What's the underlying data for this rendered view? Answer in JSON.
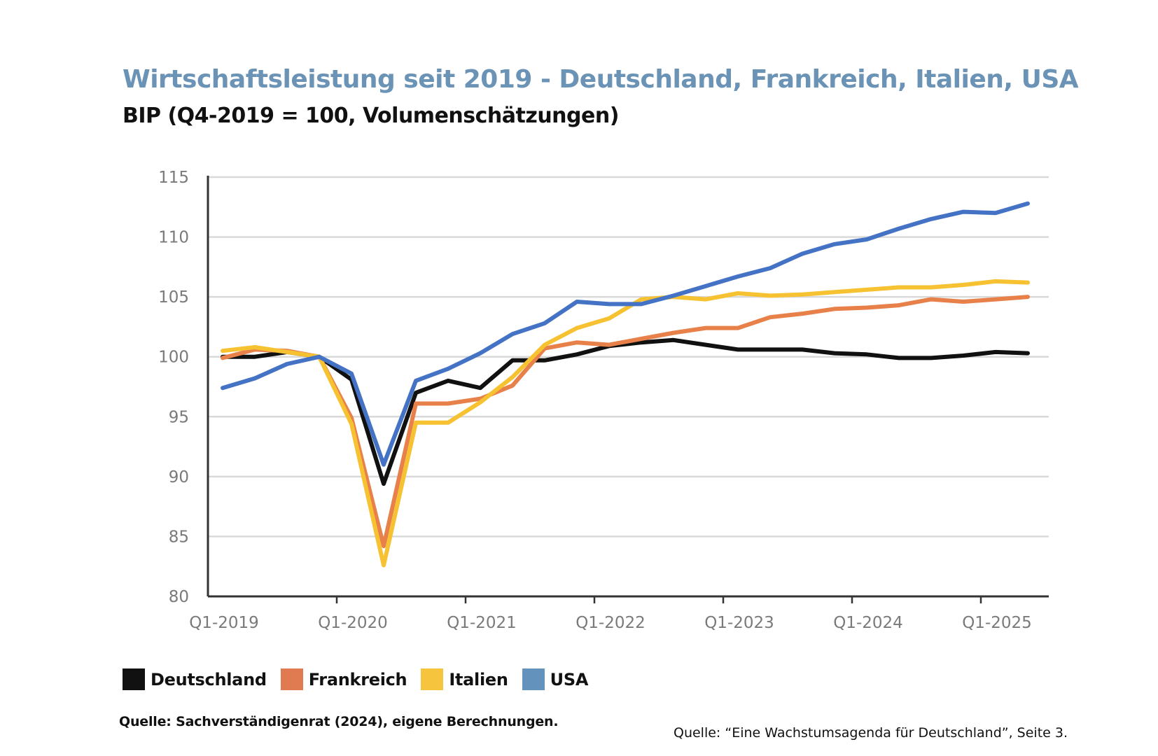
{
  "header": {
    "title": "Wirtschaftsleistung seit 2019 - Deutschland, Frankreich, Italien, USA",
    "subtitle": "BIP (Q4-2019 = 100, Volumenschätzungen)"
  },
  "colors": {
    "title": "#6b93b6",
    "Deutschland": "#111111",
    "Frankreich": "#e8804a",
    "Italien": "#f7c231",
    "USA": "#4472c4",
    "legend_usa": "#6393bd",
    "grid": "#d9d9d9",
    "axis": "#333333"
  },
  "chart_data": {
    "type": "line",
    "title": "Wirtschaftsleistung seit 2019 - Deutschland, Frankreich, Italien, USA",
    "subtitle": "BIP (Q4-2019 = 100, Volumenschätzungen)",
    "xlabel": "",
    "ylabel": "",
    "ylim": [
      80,
      115
    ],
    "yticks": [
      80,
      85,
      90,
      95,
      100,
      105,
      110,
      115
    ],
    "xtick_labels": [
      "Q1-2019",
      "Q1-2020",
      "Q1-2021",
      "Q1-2022",
      "Q1-2023",
      "Q1-2024",
      "Q1-2025"
    ],
    "grid": true,
    "legend_position": "bottom-left",
    "x": [
      "Q1-2019",
      "Q2-2019",
      "Q3-2019",
      "Q4-2019",
      "Q1-2020",
      "Q2-2020",
      "Q3-2020",
      "Q4-2020",
      "Q1-2021",
      "Q2-2021",
      "Q3-2021",
      "Q4-2021",
      "Q1-2022",
      "Q2-2022",
      "Q3-2022",
      "Q4-2022",
      "Q1-2023",
      "Q2-2023",
      "Q3-2023",
      "Q4-2023",
      "Q1-2024",
      "Q2-2024",
      "Q3-2024",
      "Q4-2024",
      "Q1-2025",
      "Q2-2025"
    ],
    "series": [
      {
        "name": "Deutschland",
        "values": [
          100.0,
          100.0,
          100.4,
          100.0,
          98.1,
          89.4,
          97.0,
          98.0,
          97.4,
          99.7,
          99.7,
          100.2,
          100.9,
          101.2,
          101.4,
          101.0,
          100.6,
          100.6,
          100.6,
          100.3,
          100.2,
          99.9,
          99.9,
          100.1,
          100.4,
          100.3
        ]
      },
      {
        "name": "Frankreich",
        "values": [
          99.9,
          100.6,
          100.5,
          100.0,
          94.9,
          84.2,
          96.1,
          96.1,
          96.5,
          97.6,
          100.7,
          101.2,
          101.0,
          101.5,
          102.0,
          102.4,
          102.4,
          103.3,
          103.6,
          104.0,
          104.1,
          104.3,
          104.8,
          104.6,
          104.8,
          105.0
        ]
      },
      {
        "name": "Italien",
        "values": [
          100.5,
          100.8,
          100.4,
          100.0,
          94.4,
          82.6,
          94.5,
          94.5,
          96.2,
          98.3,
          101.0,
          102.4,
          103.2,
          104.8,
          105.0,
          104.8,
          105.3,
          105.1,
          105.2,
          105.4,
          105.6,
          105.8,
          105.8,
          106.0,
          106.3,
          106.2
        ]
      },
      {
        "name": "USA",
        "values": [
          97.4,
          98.2,
          99.4,
          100.0,
          98.6,
          91.0,
          98.0,
          99.0,
          100.3,
          101.9,
          102.8,
          104.6,
          104.4,
          104.4,
          105.1,
          105.9,
          106.7,
          107.4,
          108.6,
          109.4,
          109.8,
          110.7,
          111.5,
          112.1,
          112.0,
          112.8
        ]
      }
    ]
  },
  "legend": [
    {
      "label": "Deutschland",
      "color": "#111111"
    },
    {
      "label": "Frankreich",
      "color": "#e07a50"
    },
    {
      "label": "Italien",
      "color": "#f7c43d"
    },
    {
      "label": "USA",
      "color": "#6393bd"
    }
  ],
  "footer": {
    "source_left": "Quelle: Sachverständigenrat (2024), eigene Berechnungen.",
    "source_right": "Quelle: “Eine Wachstumsagenda für Deutschland”, Seite 3."
  }
}
